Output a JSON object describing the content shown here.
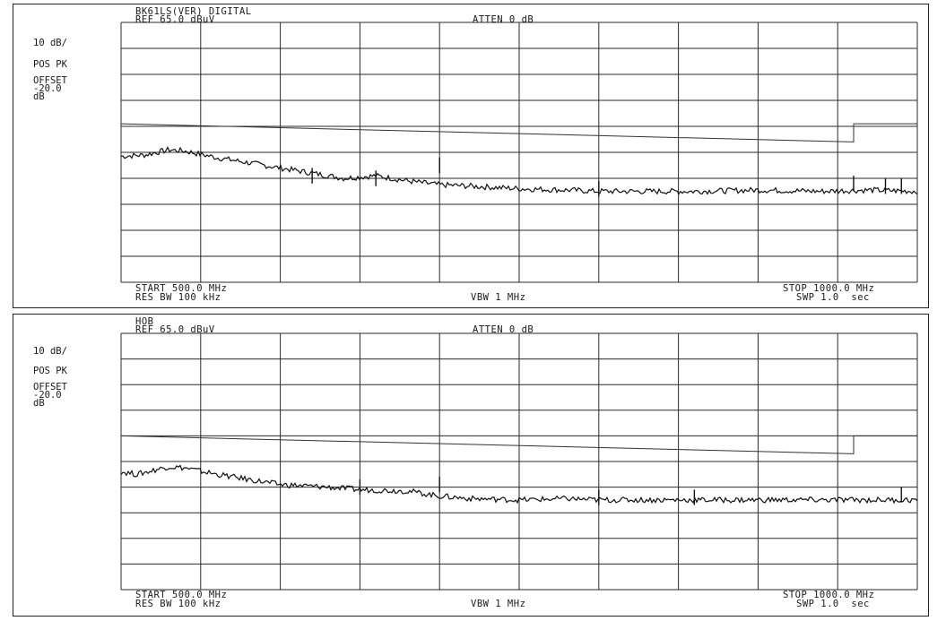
{
  "chart_data": [
    {
      "type": "line",
      "title_line1": "BK61LS(VER) DIGITAL",
      "ref_level": "REF 65.0 dBuV",
      "atten": "ATTEN 0 dB",
      "scale": "10 dB/",
      "detector": "POS PK",
      "offset_label": "OFFSET",
      "offset_value": "-20.0",
      "offset_unit": "dB",
      "start_label": "START 500.0 MHz",
      "res_bw": "RES BW 100 kHz",
      "vbw": "VBW 1 MHz",
      "stop_label": "STOP 1000.0 MHz",
      "sweep": "SWP 1.0  sec",
      "xlim": [
        500,
        1000
      ],
      "ylim": [
        -35,
        65
      ],
      "grid": true,
      "series": [
        {
          "role": "limit",
          "x": [
            500,
            960,
            960,
            1000
          ],
          "y": [
            26,
            19,
            26,
            26
          ]
        },
        {
          "role": "trace",
          "x": [
            500,
            515,
            530,
            540,
            560,
            580,
            600,
            620,
            640,
            650,
            660,
            680,
            700,
            720,
            750,
            780,
            800,
            830,
            860,
            900,
            940,
            970,
            1000
          ],
          "y": [
            13.5,
            14,
            16,
            15.5,
            13,
            11,
            9,
            7,
            5,
            5.5,
            6,
            4,
            2.5,
            2,
            1,
            0.5,
            0,
            0,
            0,
            0.5,
            0,
            0.5,
            0
          ]
        },
        {
          "role": "spikes",
          "x": [
            620,
            660,
            700,
            800,
            960,
            980,
            990
          ],
          "y": [
            9,
            8,
            13,
            4,
            6,
            5,
            5
          ]
        }
      ]
    },
    {
      "type": "line",
      "title_line1": "HOB",
      "ref_level": "REF 65.0 dBuV",
      "atten": "ATTEN 0 dB",
      "scale": "10 dB/",
      "detector": "POS PK",
      "offset_label": "OFFSET",
      "offset_value": "-20.0",
      "offset_unit": "dB",
      "start_label": "START 500.0 MHz",
      "res_bw": "RES BW 100 kHz",
      "vbw": "VBW 1 MHz",
      "stop_label": "STOP 1000.0 MHz",
      "sweep": "SWP 1.0  sec",
      "xlim": [
        500,
        1000
      ],
      "ylim": [
        -35,
        65
      ],
      "grid": true,
      "series": [
        {
          "role": "limit",
          "x": [
            500,
            960,
            960,
            1000
          ],
          "y": [
            25,
            18,
            25,
            25
          ]
        },
        {
          "role": "trace",
          "x": [
            500,
            510,
            530,
            540,
            560,
            580,
            600,
            630,
            650,
            680,
            700,
            720,
            750,
            780,
            800,
            830,
            860,
            900,
            940,
            970,
            1000
          ],
          "y": [
            11,
            10,
            13,
            12.5,
            10,
            8,
            6,
            5,
            4,
            3.5,
            1.5,
            0.5,
            0,
            0.5,
            0,
            0,
            0,
            0,
            0,
            0,
            0
          ]
        },
        {
          "role": "spikes",
          "x": [
            650,
            700,
            800,
            860,
            990
          ],
          "y": [
            8,
            9,
            4,
            4,
            5
          ]
        }
      ]
    }
  ]
}
